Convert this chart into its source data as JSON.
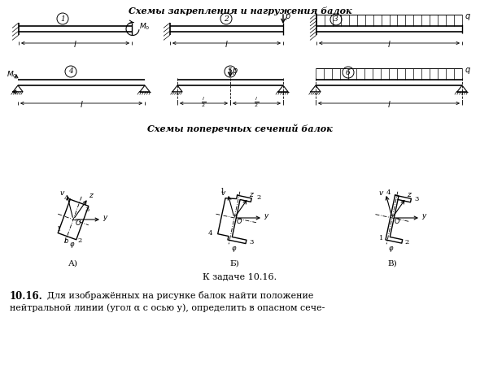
{
  "title_top": "Схемы закрепления и нагружения балок",
  "title_mid": "Схемы поперечных сечений балок",
  "caption": "К задаче 10.16.",
  "bottom1": "10.16.",
  "bottom2": "Для изображённых на рисунке балок найти положение",
  "bottom3": "нейтральной линии (угол α с осью у), определить в опасном сече-",
  "bg_color": "#ffffff"
}
